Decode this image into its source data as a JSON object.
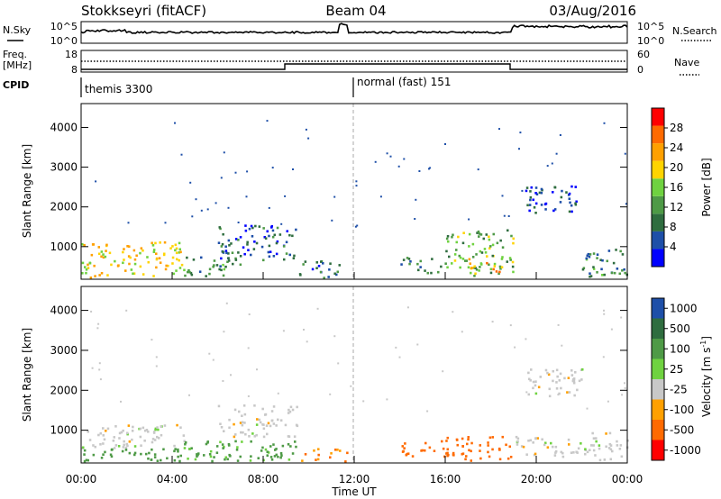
{
  "header": {
    "station": "Stokkseyri (fitACF)",
    "beam": "Beam 04",
    "date": "03/Aug/2016"
  },
  "top_panels": {
    "left_labels": {
      "nsky": "N.Sky",
      "freq": "Freq.",
      "freq_unit": "[MHz]",
      "cpid": "CPID"
    },
    "right_labels": {
      "nsearch": "N.Search",
      "nave": "Nave"
    },
    "noise_ticks_left": [
      "10^5",
      "10^0"
    ],
    "noise_ticks_right": [
      "10^5",
      "10^0"
    ],
    "freq_ticks_left": [
      "18",
      "8"
    ],
    "freq_ticks_right": [
      "60",
      "0"
    ],
    "cpid_segments": [
      {
        "label": "themis 3300",
        "start_hour": 0,
        "end_hour": 12
      },
      {
        "label": "normal (fast) 151",
        "start_hour": 12,
        "end_hour": 24
      }
    ]
  },
  "colors": {
    "power_scale": [
      "#0000ff",
      "#1e4fa8",
      "#2f6d3f",
      "#4e9a46",
      "#6fd240",
      "#ffd400",
      "#ffa000",
      "#ff6a00",
      "#ff0000"
    ],
    "velocity_scale": [
      "#ff0000",
      "#ff6a00",
      "#ffa000",
      "#c8c8c8",
      "#6fd240",
      "#4e9a46",
      "#2f6d3f",
      "#1e4fa8"
    ]
  },
  "chart_data": [
    {
      "type": "heatmap",
      "panel": "power",
      "xlabel": "",
      "ylabel": "Slant Range [km]",
      "x_range_hours": [
        0,
        24
      ],
      "ylim": [
        180,
        4600
      ],
      "yticks": [
        "1000",
        "2000",
        "3000",
        "4000"
      ],
      "colorbar": {
        "label": "Power [dB]",
        "range": [
          0,
          32
        ],
        "ticks": [
          "4",
          "8",
          "12",
          "16",
          "20",
          "24",
          "28"
        ]
      },
      "echo_regions": [
        {
          "t0": 0.0,
          "t1": 4.5,
          "r0": 180,
          "r1": 1100,
          "value": 20
        },
        {
          "t0": 4.5,
          "t1": 7.0,
          "r0": 180,
          "r1": 700,
          "value": 10
        },
        {
          "t0": 6.0,
          "t1": 9.5,
          "r0": 600,
          "r1": 1500,
          "value": 7
        },
        {
          "t0": 9.5,
          "t1": 11.5,
          "r0": 180,
          "r1": 600,
          "value": 8
        },
        {
          "t0": 14.0,
          "t1": 16.0,
          "r0": 300,
          "r1": 700,
          "value": 8
        },
        {
          "t0": 16.0,
          "t1": 19.0,
          "r0": 200,
          "r1": 1400,
          "value": 14
        },
        {
          "t0": 17.0,
          "t1": 18.5,
          "r0": 300,
          "r1": 700,
          "value": 24
        },
        {
          "t0": 19.5,
          "t1": 22.0,
          "r0": 1800,
          "r1": 2500,
          "value": 5
        },
        {
          "t0": 22.0,
          "t1": 24.0,
          "r0": 200,
          "r1": 900,
          "value": 10
        }
      ]
    },
    {
      "type": "heatmap",
      "panel": "velocity",
      "xlabel": "Time UT",
      "ylabel": "Slant Range [km]",
      "x_range_hours": [
        0,
        24
      ],
      "xticks": [
        "00:00",
        "04:00",
        "08:00",
        "12:00",
        "16:00",
        "20:00",
        "00:00"
      ],
      "ylim": [
        180,
        4600
      ],
      "yticks": [
        "1000",
        "2000",
        "3000",
        "4000"
      ],
      "colorbar": {
        "label": "Velocity [m s^-1]",
        "ticks": [
          "1000",
          "500",
          "100",
          "25",
          "-25",
          "-100",
          "-500",
          "-1000"
        ]
      },
      "echo_regions": [
        {
          "t0": 0.0,
          "t1": 4.5,
          "r0": 500,
          "r1": 1100,
          "value": 0
        },
        {
          "t0": 0.0,
          "t1": 4.5,
          "r0": 180,
          "r1": 500,
          "value": 150
        },
        {
          "t0": 4.5,
          "t1": 9.5,
          "r0": 180,
          "r1": 700,
          "value": 120
        },
        {
          "t0": 6.0,
          "t1": 9.5,
          "r0": 800,
          "r1": 1600,
          "value": 0
        },
        {
          "t0": 9.5,
          "t1": 12.0,
          "r0": 180,
          "r1": 500,
          "value": -100
        },
        {
          "t0": 14.0,
          "t1": 16.0,
          "r0": 300,
          "r1": 700,
          "value": -200
        },
        {
          "t0": 16.0,
          "t1": 19.0,
          "r0": 200,
          "r1": 800,
          "value": -200
        },
        {
          "t0": 19.0,
          "t1": 22.0,
          "r0": 300,
          "r1": 800,
          "value": 0
        },
        {
          "t0": 19.5,
          "t1": 22.0,
          "r0": 1800,
          "r1": 2500,
          "value": 0
        },
        {
          "t0": 22.0,
          "t1": 24.0,
          "r0": 200,
          "r1": 900,
          "value": 0
        }
      ]
    }
  ]
}
